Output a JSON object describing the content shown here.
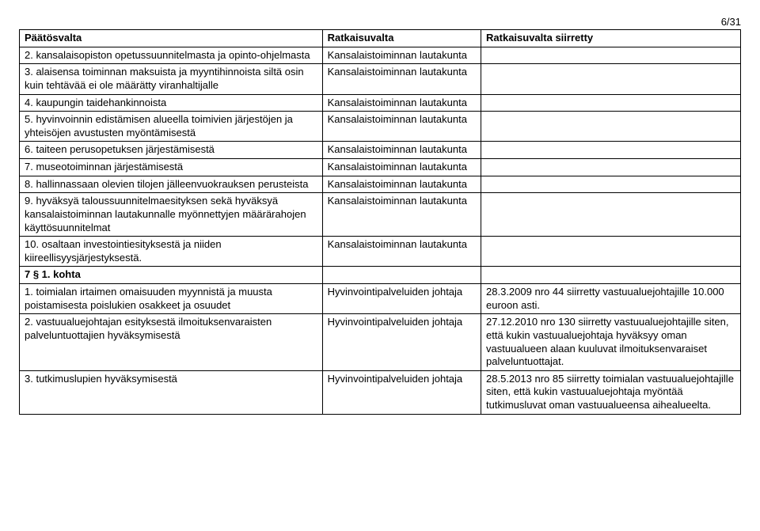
{
  "page": {
    "number": "6/31"
  },
  "headers": {
    "col1": "Päätösvalta",
    "col2": "Ratkaisuvalta",
    "col3": "Ratkaisuvalta siirretty"
  },
  "section1": {
    "rows": [
      {
        "c1": "2. kansalaisopiston opetussuunnitelmasta ja opinto-ohjelmasta",
        "c2": "Kansalaistoiminnan lautakunta",
        "c3": ""
      },
      {
        "c1": "3. alaisensa toiminnan maksuista ja myyntihinnoista siltä osin kuin tehtävää ei ole määrätty viranhaltijalle",
        "c2": "Kansalaistoiminnan lautakunta",
        "c3": ""
      },
      {
        "c1": "4. kaupungin taidehankinnoista",
        "c2": "Kansalaistoiminnan lautakunta",
        "c3": ""
      },
      {
        "c1": "5. hyvinvoinnin edistämisen alueella toimivien järjestöjen ja yhteisöjen avustusten myöntämisestä",
        "c2": "Kansalaistoiminnan lautakunta",
        "c3": ""
      },
      {
        "c1": "6. taiteen perusopetuksen järjestämisestä",
        "c2": "Kansalaistoiminnan lautakunta",
        "c3": ""
      },
      {
        "c1": "7. museotoiminnan järjestämisestä",
        "c2": "Kansalaistoiminnan lautakunta",
        "c3": ""
      },
      {
        "c1": "8. hallinnassaan olevien tilojen jälleenvuokrauksen perusteista",
        "c2": "Kansalaistoiminnan lautakunta",
        "c3": ""
      },
      {
        "c1": "9. hyväksyä taloussuunnitelmaesityksen sekä hyväksyä kansalaistoiminnan lautakunnalle myönnettyjen määrärahojen käyttösuunnitelmat",
        "c2": "Kansalaistoiminnan lautakunta",
        "c3": ""
      },
      {
        "c1": "10. osaltaan investointiesityksestä ja niiden kiireellisyysjärjestyksestä.",
        "c2": "Kansalaistoiminnan lautakunta",
        "c3": ""
      }
    ]
  },
  "section2": {
    "heading": "7 § 1. kohta",
    "rows": [
      {
        "c1": "1. toimialan irtaimen omaisuuden myynnistä ja muusta poistamisesta poislukien osakkeet ja osuudet",
        "c2": "Hyvinvointipalveluiden johtaja",
        "c3": "28.3.2009 nro 44 siirretty vastuualuejohtajille 10.000 euroon asti."
      },
      {
        "c1": "2. vastuualuejohtajan esityksestä ilmoituksenvaraisten palveluntuottajien hyväksymisestä",
        "c2": "Hyvinvointipalveluiden johtaja",
        "c3": "27.12.2010 nro 130 siirretty vastuualuejohtajille siten, että kukin vastuualuejohtaja hyväksyy oman vastuualueen alaan kuuluvat ilmoituksenvaraiset palveluntuottajat."
      },
      {
        "c1": "3. tutkimuslupien hyväksymisestä",
        "c2": "Hyvinvointipalveluiden johtaja",
        "c3": "28.5.2013 nro 85 siirretty toimialan vastuualuejohtajille siten, että kukin vastuualuejohtaja myöntää tutkimusluvat oman vastuualueensa aihealueelta."
      }
    ]
  }
}
